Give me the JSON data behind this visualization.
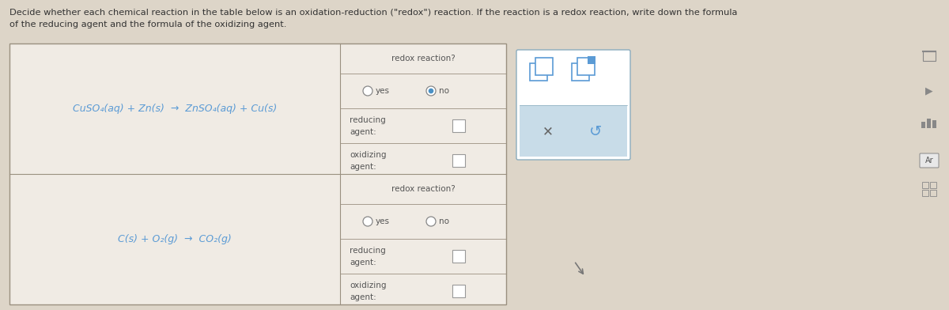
{
  "bg_color": "#ddd5c8",
  "cell_bg": "#f0ebe4",
  "border_color": "#9a9080",
  "text_color": "#555555",
  "header_text": "#333333",
  "blue_text": "#5b9bd5",
  "radio_filled_color": "#4a90c4",
  "popup_bg": "#c8dce8",
  "popup_border": "#8aacbe",
  "title_line1": "Decide whether each chemical reaction in the table below is an oxidation-reduction (\"redox\") reaction. If the reaction is a redox reaction, write down the formula",
  "title_line2": "of the reducing agent and the formula of the oxidizing agent.",
  "reaction1": "CuSO₄(aq) + Zn(s)  →  ZnSO₄(aq) + Cu(s)",
  "reaction2": "C(s) + O₂(g)  →  CO₂(g)",
  "redox_label": "redox reaction?",
  "yes_label": "yes",
  "no_label": "no",
  "reducing_label": "reducing\nagent:",
  "oxidizing_label": "oxidizing\nagent:",
  "fig_width": 12.0,
  "fig_height": 3.92
}
